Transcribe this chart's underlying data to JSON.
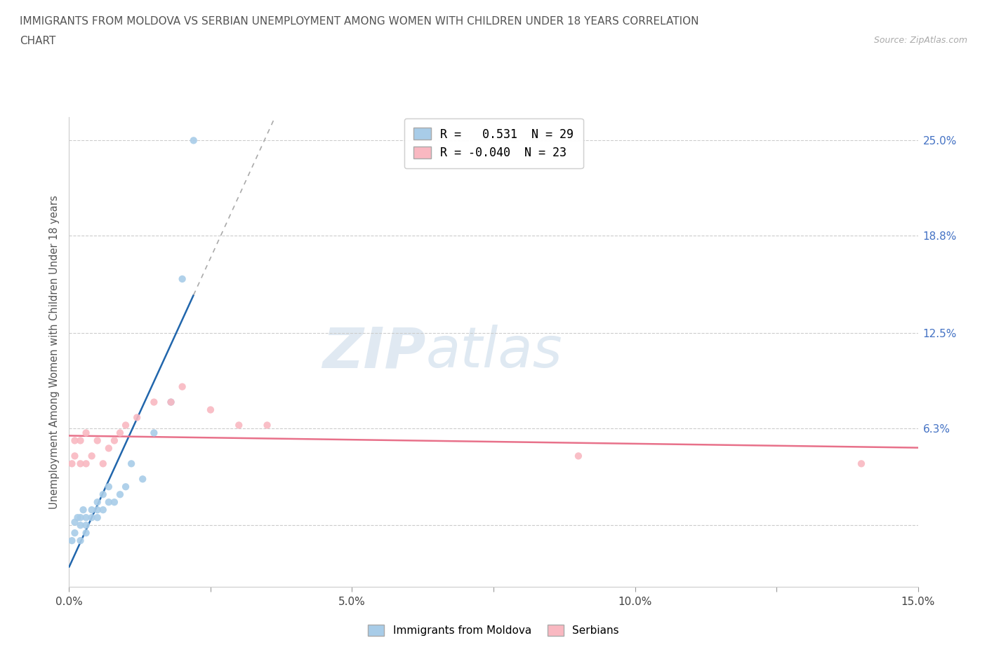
{
  "title_line1": "IMMIGRANTS FROM MOLDOVA VS SERBIAN UNEMPLOYMENT AMONG WOMEN WITH CHILDREN UNDER 18 YEARS CORRELATION",
  "title_line2": "CHART",
  "source": "Source: ZipAtlas.com",
  "ylabel": "Unemployment Among Women with Children Under 18 years",
  "xlim": [
    0.0,
    0.15
  ],
  "ylim": [
    -0.04,
    0.265
  ],
  "yticks": [
    0.0,
    0.063,
    0.125,
    0.188,
    0.25
  ],
  "ytick_labels": [
    "",
    "6.3%",
    "12.5%",
    "18.8%",
    "25.0%"
  ],
  "xticks": [
    0.0,
    0.025,
    0.05,
    0.075,
    0.1,
    0.125,
    0.15
  ],
  "xtick_labels": [
    "0.0%",
    "",
    "5.0%",
    "",
    "10.0%",
    "",
    "15.0%"
  ],
  "moldova_color": "#a8cce8",
  "serbian_color": "#f9b8c1",
  "moldova_line_color": "#2166ac",
  "serbian_line_color": "#e8718a",
  "legend_r1": "R =   0.531  N = 29",
  "legend_r2": "R = -0.040  N = 23",
  "watermark_zip": "ZIP",
  "watermark_atlas": "atlas",
  "moldova_x": [
    0.0005,
    0.001,
    0.001,
    0.0015,
    0.002,
    0.002,
    0.002,
    0.0025,
    0.003,
    0.003,
    0.003,
    0.004,
    0.004,
    0.005,
    0.005,
    0.005,
    0.006,
    0.006,
    0.007,
    0.007,
    0.008,
    0.009,
    0.01,
    0.011,
    0.013,
    0.015,
    0.018,
    0.02,
    0.022
  ],
  "moldova_y": [
    -0.01,
    -0.005,
    0.002,
    0.005,
    -0.01,
    0.0,
    0.005,
    0.01,
    -0.005,
    0.0,
    0.005,
    0.005,
    0.01,
    0.005,
    0.01,
    0.015,
    0.01,
    0.02,
    0.015,
    0.025,
    0.015,
    0.02,
    0.025,
    0.04,
    0.03,
    0.06,
    0.08,
    0.16,
    0.25
  ],
  "serbian_x": [
    0.0005,
    0.001,
    0.001,
    0.002,
    0.002,
    0.003,
    0.003,
    0.004,
    0.005,
    0.006,
    0.007,
    0.008,
    0.009,
    0.01,
    0.012,
    0.015,
    0.018,
    0.02,
    0.025,
    0.03,
    0.035,
    0.09,
    0.14
  ],
  "serbian_y": [
    0.04,
    0.045,
    0.055,
    0.04,
    0.055,
    0.04,
    0.06,
    0.045,
    0.055,
    0.04,
    0.05,
    0.055,
    0.06,
    0.065,
    0.07,
    0.08,
    0.08,
    0.09,
    0.075,
    0.065,
    0.065,
    0.045,
    0.04
  ]
}
